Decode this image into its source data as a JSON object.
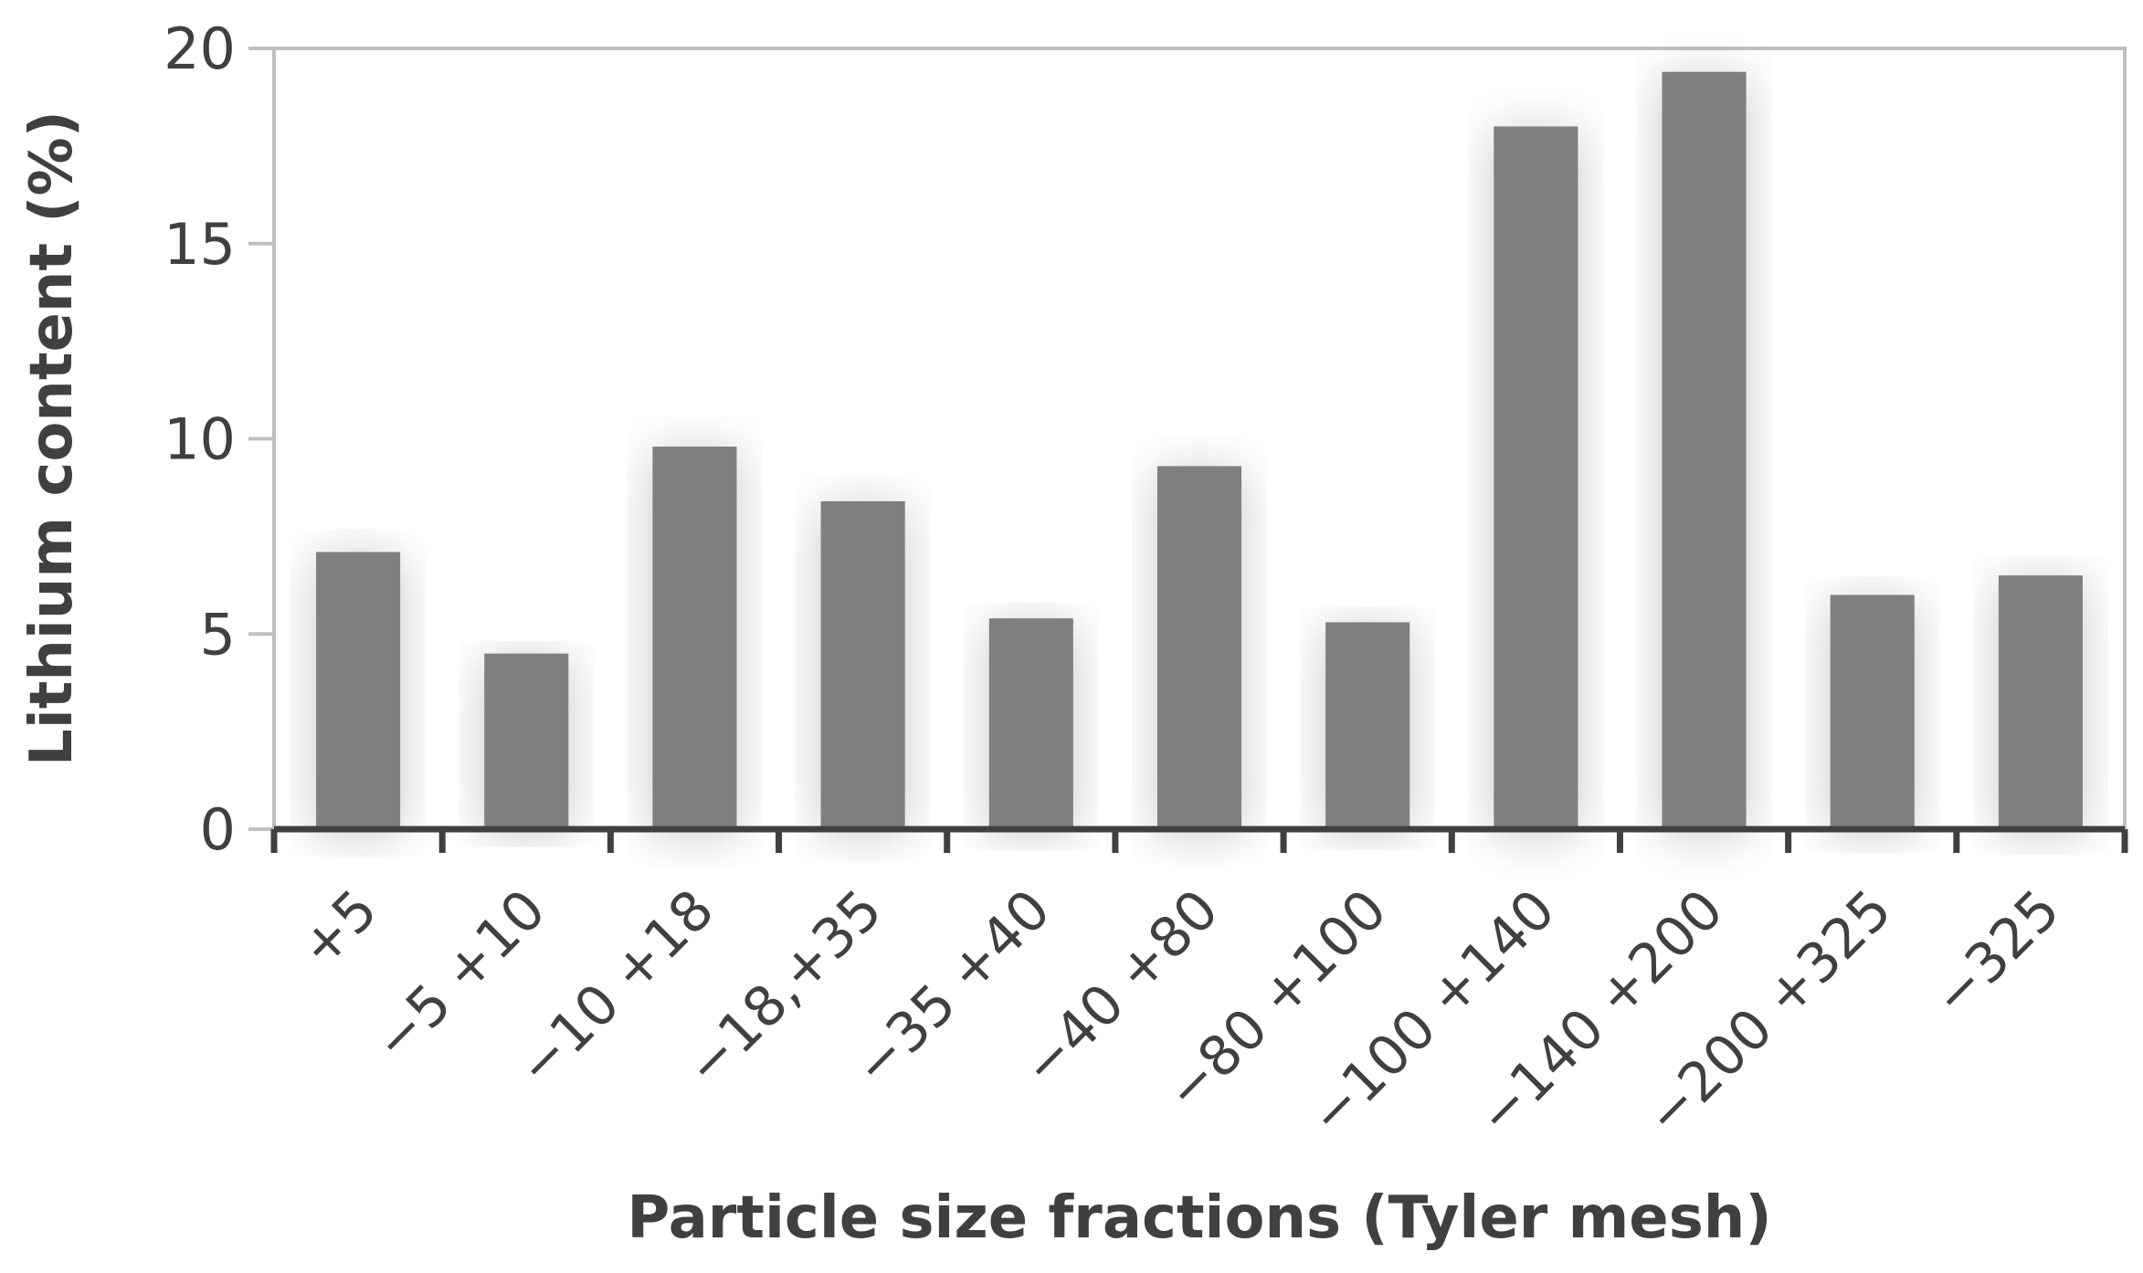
{
  "chart_data": {
    "type": "bar",
    "title": "",
    "xlabel": "Particle size fractions (Tyler mesh)",
    "ylabel": "Lithium content (%)",
    "ylim": [
      0,
      20
    ],
    "yticks": [
      "0",
      "5",
      "10",
      "15",
      "20"
    ],
    "categories": [
      "+5",
      "−5 +10",
      "−10 +18",
      "−18,+35",
      "−35 +40",
      "−40 +80",
      "−80 +100",
      "−100 +140",
      "−140 +200",
      "−200 +325",
      "−325"
    ],
    "values": [
      7.1,
      4.5,
      9.8,
      8.4,
      5.4,
      9.3,
      5.3,
      18.0,
      19.4,
      6.0,
      6.5
    ],
    "grid": false,
    "legend": "none",
    "colors": {
      "bar": "#7f7f7f",
      "axis": "#404040",
      "frame": "#bfbfbf",
      "text": "#404040"
    }
  }
}
